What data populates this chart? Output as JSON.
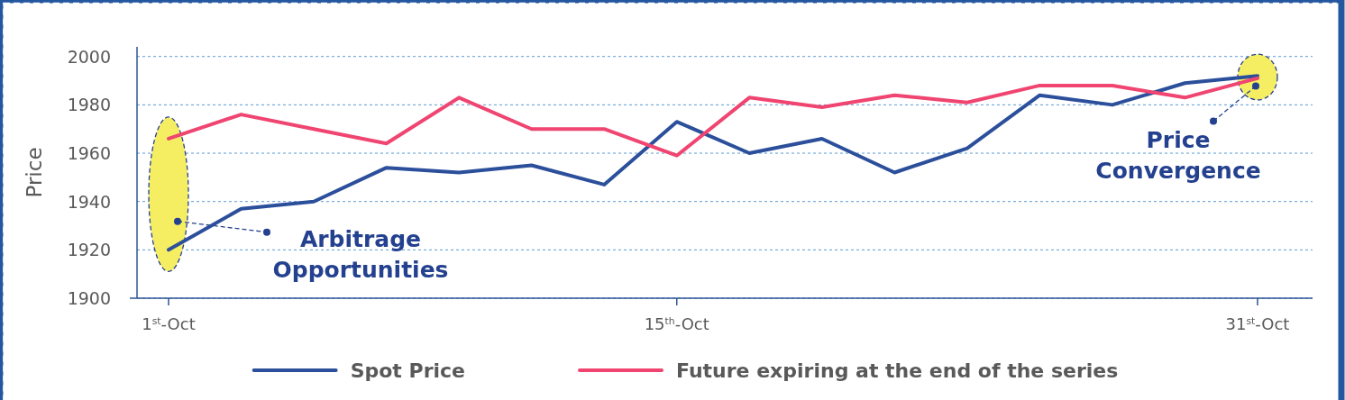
{
  "chart_data": {
    "type": "line",
    "ylabel": "Price",
    "categories": [
      "1$^{st}$-Oct",
      null,
      null,
      null,
      null,
      null,
      null,
      "15$^{th}$-Oct",
      null,
      null,
      null,
      null,
      null,
      null,
      null,
      "31$^{st}$-Oct"
    ],
    "ylim": [
      1900,
      2004
    ],
    "yticks": [
      1900,
      1920,
      1940,
      1960,
      1980,
      2000
    ],
    "grid": "y",
    "legend": "bottom",
    "series": [
      {
        "name": "Spot Price",
        "color": "#2b4f9b",
        "values": [
          1920,
          1937,
          1940,
          1954,
          1952,
          1955,
          1947,
          1973,
          1960,
          1966,
          1952,
          1962,
          1984,
          1980,
          1989,
          1992
        ]
      },
      {
        "name": "Future expiring at the end of the series",
        "color": "#ef4570",
        "values": [
          1966,
          1976,
          1970,
          1964,
          1983,
          1970,
          1970,
          1959,
          1983,
          1979,
          1984,
          1981,
          1988,
          1988,
          1983,
          1991
        ]
      }
    ],
    "annotations": [
      "Arbitrage Opportunities",
      "Price Convergence"
    ]
  }
}
